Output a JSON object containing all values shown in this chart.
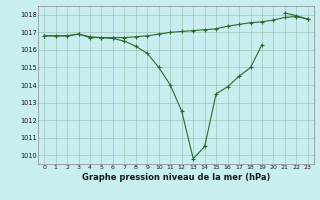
{
  "title": "Graphe pression niveau de la mer (hPa)",
  "hours": [
    0,
    1,
    2,
    3,
    4,
    5,
    6,
    7,
    8,
    9,
    10,
    11,
    12,
    13,
    14,
    15,
    16,
    17,
    18,
    19,
    20,
    21,
    22,
    23
  ],
  "line_dip": [
    1016.8,
    1016.8,
    1016.8,
    1016.9,
    1016.7,
    1016.7,
    1016.65,
    1016.5,
    1016.2,
    1015.8,
    1015.0,
    1014.0,
    1012.5,
    1009.8,
    1010.5,
    1013.5,
    1013.9,
    1014.5,
    1015.0,
    1016.3,
    null,
    null,
    null,
    null
  ],
  "line_upper": [
    1016.8,
    1016.8,
    1016.8,
    1016.9,
    1016.75,
    1016.7,
    1016.7,
    1016.7,
    1016.75,
    1016.8,
    1016.9,
    1017.0,
    1017.05,
    1017.1,
    1017.15,
    1017.2,
    1017.35,
    1017.45,
    1017.55,
    1017.6,
    1017.7,
    1017.85,
    1017.9,
    1017.75
  ],
  "line_top": [
    null,
    null,
    null,
    null,
    null,
    null,
    null,
    null,
    null,
    null,
    null,
    null,
    null,
    null,
    null,
    null,
    null,
    null,
    null,
    null,
    null,
    1018.1,
    1017.95,
    1017.75
  ],
  "ylim_lo": 1009.5,
  "ylim_hi": 1018.5,
  "yticks": [
    1010,
    1011,
    1012,
    1013,
    1014,
    1015,
    1016,
    1017,
    1018
  ],
  "line_color": "#2d6a2d",
  "bg_color": "#c8eef0",
  "grid_color": "#99bbaa"
}
